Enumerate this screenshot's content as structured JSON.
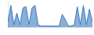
{
  "chart_data": {
    "type": "area",
    "x": [
      0,
      1,
      2,
      3,
      4,
      5,
      6,
      7,
      8,
      9,
      10,
      11,
      12,
      13,
      14,
      15,
      16,
      17,
      18,
      19,
      20,
      21,
      22,
      23,
      24,
      25,
      26,
      27,
      28
    ],
    "values": [
      20,
      85,
      10,
      55,
      10,
      75,
      80,
      10,
      75,
      85,
      10,
      5,
      5,
      5,
      5,
      5,
      5,
      5,
      50,
      30,
      5,
      5,
      10,
      80,
      10,
      85,
      10,
      70,
      20
    ],
    "color": "#3a7abf",
    "xlim": [
      0,
      28
    ],
    "ylim": [
      0,
      100
    ],
    "tick_labels": false,
    "grid": false
  }
}
